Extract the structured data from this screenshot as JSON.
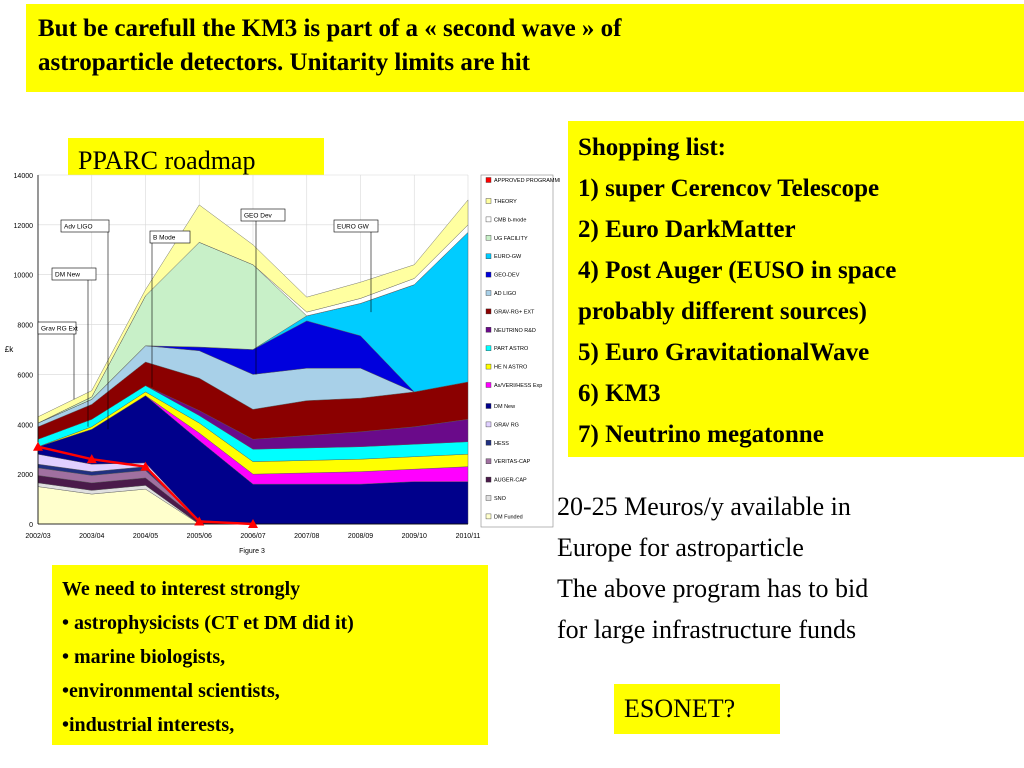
{
  "slide": {
    "title_lines": [
      "But be carefull  the KM3 is part of a « second wave »  of",
      "astroparticle detectors. Unitarity limits are hit"
    ],
    "pparc_label": "PPARC roadmap",
    "shopping": {
      "heading": "Shopping list:",
      "items": [
        "1) super Cerencov Telescope",
        "2) Euro DarkMatter",
        "4) Post Auger (EUSO in space",
        "probably different sources)",
        "5) Euro GravitationalWave",
        "6) KM3",
        "7) Neutrino megatonne"
      ]
    },
    "budget_lines": [
      "20-25 Meuros/y available in",
      "Europe for astroparticle",
      "The above program  has to bid",
      "for large infrastructure funds"
    ],
    "interest": {
      "heading": "We need to interest strongly",
      "items": [
        "• astrophysicists (CT et DM did it)",
        "• marine biologists,",
        "•environmental scientists,",
        "•industrial interests,"
      ]
    },
    "esonet": "ESONET?"
  },
  "chart_data": {
    "type": "area",
    "stacked": true,
    "ylabel": "£k",
    "ylim": [
      0,
      14000
    ],
    "yticks": [
      0,
      2000,
      4000,
      6000,
      8000,
      10000,
      12000,
      14000
    ],
    "caption": "Figure 3",
    "categories": [
      "2002/03",
      "2003/04",
      "2004/05",
      "2005/06",
      "2006/07",
      "2007/08",
      "2008/09",
      "2009/10",
      "2010/11"
    ],
    "series": [
      {
        "name": "DM Funded",
        "color": "#ffffcc",
        "values": [
          1500,
          1200,
          1400,
          0,
          0,
          0,
          0,
          0,
          0
        ]
      },
      {
        "name": "SNO",
        "color": "#e0e0e0",
        "values": [
          150,
          150,
          150,
          0,
          0,
          0,
          0,
          0,
          0
        ]
      },
      {
        "name": "AUGER-CAP",
        "color": "#4a1a4a",
        "values": [
          300,
          300,
          300,
          150,
          0,
          0,
          0,
          0,
          0
        ]
      },
      {
        "name": "VERITAS-CAP",
        "color": "#a070a0",
        "values": [
          300,
          300,
          300,
          0,
          0,
          0,
          0,
          0,
          0
        ]
      },
      {
        "name": "HESS",
        "color": "#203080",
        "values": [
          150,
          150,
          150,
          0,
          0,
          0,
          0,
          0,
          0
        ]
      },
      {
        "name": "GRAV RG",
        "color": "#e0d0ff",
        "values": [
          400,
          300,
          150,
          0,
          0,
          0,
          0,
          0,
          0
        ]
      },
      {
        "name": "DM New",
        "color": "#00008b",
        "values": [
          300,
          1400,
          2700,
          3200,
          1600,
          1600,
          1600,
          1700,
          1700
        ]
      },
      {
        "name": "As/VERI/HESS Exp",
        "color": "#ff00ff",
        "values": [
          0,
          0,
          0,
          300,
          400,
          450,
          500,
          500,
          600
        ]
      },
      {
        "name": "HE N ASTRO",
        "color": "#ffff00",
        "values": [
          0,
          100,
          150,
          400,
          500,
          500,
          500,
          500,
          500
        ]
      },
      {
        "name": "PART ASTRO",
        "color": "#00ffff",
        "values": [
          300,
          300,
          250,
          300,
          500,
          500,
          500,
          500,
          500
        ]
      },
      {
        "name": "NEUTRINO R&D",
        "color": "#6a0a8a",
        "values": [
          0,
          0,
          0,
          200,
          400,
          500,
          600,
          700,
          900
        ]
      },
      {
        "name": "GRAV-RG+ EXT",
        "color": "#8b0000",
        "values": [
          500,
          600,
          950,
          1300,
          1200,
          1400,
          1350,
          1400,
          1500
        ]
      },
      {
        "name": "AD LIGO",
        "color": "#a8d0e8",
        "values": [
          150,
          200,
          650,
          1100,
          1400,
          1300,
          1200,
          0,
          0
        ]
      },
      {
        "name": "GEO-DEV",
        "color": "#0000dd",
        "values": [
          0,
          0,
          0,
          150,
          1000,
          1900,
          1300,
          0,
          0
        ]
      },
      {
        "name": "EURO-GW",
        "color": "#00ccff",
        "values": [
          0,
          0,
          0,
          0,
          0,
          200,
          1300,
          4300,
          6000
        ]
      },
      {
        "name": "UG FACILITY",
        "color": "#c8f0c8",
        "values": [
          0,
          100,
          2000,
          4200,
          3400,
          0,
          0,
          0,
          0
        ]
      },
      {
        "name": "CMB b-mode",
        "color": "#ffffff",
        "values": [
          0,
          0,
          0,
          0,
          0,
          150,
          200,
          250,
          300
        ]
      },
      {
        "name": "THEORY",
        "color": "#ffffa0",
        "values": [
          250,
          250,
          250,
          1500,
          800,
          600,
          650,
          550,
          1000
        ]
      },
      {
        "name": "APPROVED PROGRAMME",
        "color": "#ff0000",
        "values": [
          3100,
          2600,
          2300,
          100,
          0,
          null,
          null,
          null,
          null
        ]
      }
    ],
    "annotations": [
      "Adv LIGO",
      "DM New",
      "Grav RG Ext",
      "B Mode",
      "GEO Dev",
      "EURO GW"
    ]
  }
}
